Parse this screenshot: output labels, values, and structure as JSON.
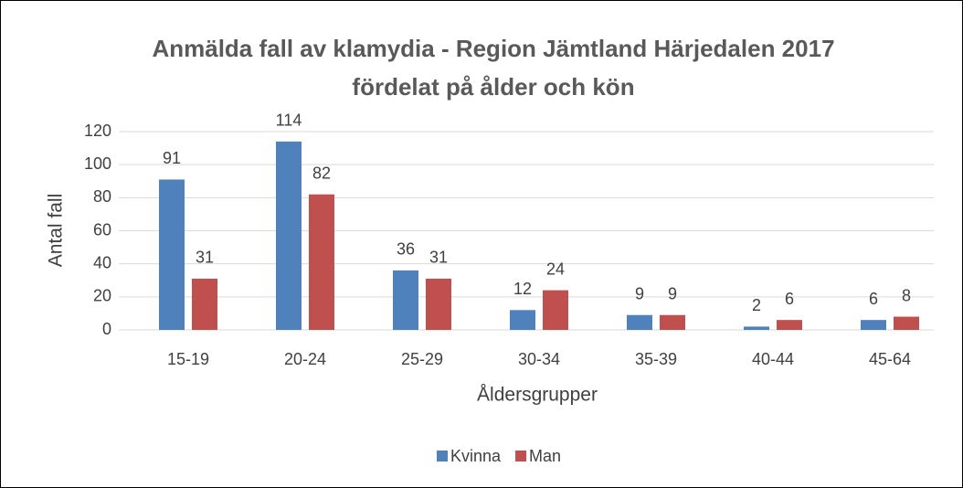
{
  "chart_data": {
    "type": "bar",
    "title": [
      "Anmälda fall av klamydia - Region Jämtland Härjedalen 2017",
      "fördelat på ålder och kön"
    ],
    "x_label": "Åldersgrupper",
    "y_label": "Antal fall",
    "categories": [
      "15-19",
      "20-24",
      "25-29",
      "30-34",
      "35-39",
      "40-44",
      "45-64"
    ],
    "series": [
      {
        "name": "Kvinna",
        "color": "#4f81bd",
        "values": [
          91,
          114,
          36,
          12,
          9,
          2,
          6
        ]
      },
      {
        "name": "Man",
        "color": "#c0504d",
        "values": [
          31,
          82,
          31,
          24,
          9,
          6,
          8
        ]
      }
    ],
    "ylim": [
      0,
      120
    ],
    "yticks": [
      0,
      20,
      40,
      60,
      80,
      100,
      120
    ],
    "grid": true,
    "legend": "bottom"
  }
}
